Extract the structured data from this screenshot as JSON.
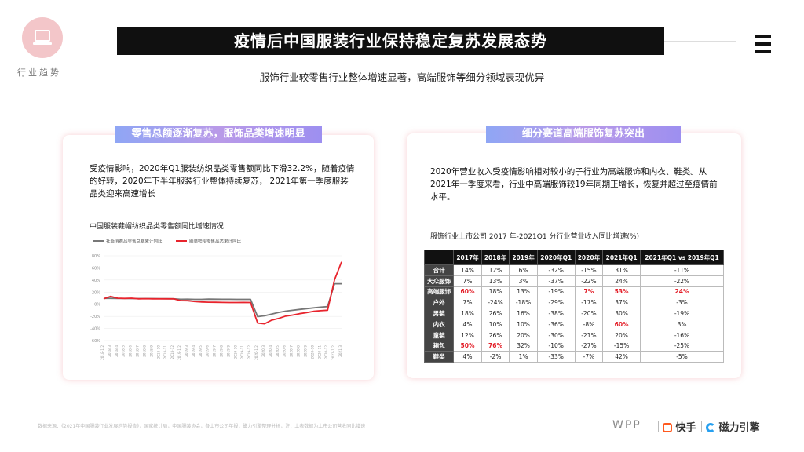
{
  "header": {
    "section_label": "行业趋势",
    "title": "疫情后中国服装行业保持稳定复苏发展态势",
    "subtitle": "服饰行业较零售行业整体增速显著，高端服饰等细分领域表现优异"
  },
  "left_card": {
    "heading": "零售总额逐渐复苏，服饰品类增速明显",
    "paragraph": "受疫情影响，2020年Q1服装纺织品类零售额同比下滑32.2%，随着疫情的好转，2020年下半年服装行业整体持续复苏， 2021年第一季度服装品类迎来高速增长",
    "chart_title": "中国服装鞋帽纺织品类零售额同比增速情况"
  },
  "right_card": {
    "heading": "细分赛道高端服饰复苏突出",
    "paragraph": "2020年营业收入受疫情影响相对较小的子行业为高端服饰和内衣、鞋类。从2021年一季度来看，行业中高端服饰较19年同期正增长，恢复并超过至疫情前水平。",
    "table_title": "服饰行业上市公司 2017 年-2021Q1 分行业营业收入同比增速(%)",
    "columns": [
      "",
      "2017年",
      "2018年",
      "2019年",
      "2020年Q1",
      "2020年",
      "2021年Q1",
      "2021年Q1 vs 2019年Q1"
    ],
    "rows": [
      {
        "name": "合计",
        "cells": [
          "14%",
          "12%",
          "6%",
          "-32%",
          "-15%",
          "31%",
          "-11%"
        ]
      },
      {
        "name": "大众服饰",
        "cells": [
          "7%",
          "13%",
          "3%",
          "-37%",
          "-22%",
          "24%",
          "-22%"
        ]
      },
      {
        "name": "高端服饰",
        "cells": [
          "60%",
          "18%",
          "13%",
          "-19%",
          "7%",
          "53%",
          "24%"
        ]
      },
      {
        "name": "户外",
        "cells": [
          "7%",
          "-24%",
          "-18%",
          "-29%",
          "-17%",
          "37%",
          "-3%"
        ]
      },
      {
        "name": "男装",
        "cells": [
          "18%",
          "26%",
          "16%",
          "-38%",
          "-20%",
          "30%",
          "-19%"
        ]
      },
      {
        "name": "内衣",
        "cells": [
          "4%",
          "10%",
          "10%",
          "-36%",
          "-8%",
          "60%",
          "3%"
        ]
      },
      {
        "name": "童装",
        "cells": [
          "12%",
          "26%",
          "20%",
          "-30%",
          "-21%",
          "20%",
          "-16%"
        ]
      },
      {
        "name": "箱包",
        "cells": [
          "50%",
          "76%",
          "32%",
          "-10%",
          "-27%",
          "-15%",
          "-25%"
        ]
      },
      {
        "name": "鞋类",
        "cells": [
          "4%",
          "-2%",
          "1%",
          "-33%",
          "-7%",
          "42%",
          "-5%"
        ]
      }
    ],
    "highlights": [
      [
        2,
        0
      ],
      [
        2,
        4
      ],
      [
        2,
        5
      ],
      [
        2,
        6
      ],
      [
        5,
        5
      ],
      [
        7,
        0
      ],
      [
        7,
        1
      ]
    ]
  },
  "chart_data": {
    "type": "line",
    "title": "中国服装鞋帽纺织品类零售额同比增速情况",
    "ylim": [
      -60,
      80
    ],
    "yticks": [
      "80%",
      "60%",
      "40%",
      "20%",
      "0%",
      "-20%",
      "-40%",
      "-60%"
    ],
    "x": [
      "2018-1/2",
      "2018-3",
      "2018-4",
      "2018-5",
      "2018-6",
      "2018-7",
      "2018-8",
      "2018-9",
      "2018-10",
      "2018-11",
      "2018-12",
      "2019-1/2",
      "2019-3",
      "2019-4",
      "2019-5",
      "2019-6",
      "2019-7",
      "2019-8",
      "2019-9",
      "2019-10",
      "2019-11",
      "2019-12",
      "2020-1/2",
      "2020-3",
      "2020-4",
      "2020-5",
      "2020-6",
      "2020-7",
      "2020-8",
      "2020-9",
      "2020-10",
      "2020-11",
      "2020-12",
      "2021-1/2",
      "2021-3"
    ],
    "series": [
      {
        "name": "社会消费品零售总额累计同比",
        "color": "#777777",
        "values": [
          9.7,
          9.8,
          9.5,
          9.5,
          9.4,
          9.3,
          9.3,
          9.3,
          9.2,
          9.1,
          9.0,
          8.2,
          8.3,
          8.0,
          8.1,
          8.4,
          8.3,
          8.2,
          8.2,
          8.1,
          8.0,
          8.0,
          -20.5,
          -19.0,
          -16.2,
          -13.5,
          -11.4,
          -9.9,
          -8.6,
          -7.2,
          -5.9,
          -4.8,
          -3.9,
          33.8,
          33.9
        ]
      },
      {
        "name": "服装鞋帽零售品类累计同比",
        "color": "#e8242d",
        "values": [
          9.0,
          13.0,
          10.0,
          9.6,
          10.0,
          9.0,
          9.2,
          9.0,
          9.0,
          8.9,
          8.9,
          6.0,
          5.8,
          4.5,
          3.8,
          3.4,
          3.2,
          3.0,
          2.9,
          2.9,
          3.0,
          2.9,
          -30.9,
          -32.2,
          -26.3,
          -23.5,
          -19.6,
          -17.9,
          -15.5,
          -13.8,
          -11.6,
          -10.6,
          -9.8,
          40.6,
          70.0
        ]
      }
    ]
  },
  "footer": {
    "source": "数据来源：《2021年中国服装行业发展趋势报告》；国家统计局；中国服装协会；各上市公司年报；磁力引擎整理分析；注：上表数据为上市公司营收同比增速",
    "brands": [
      "WPP",
      "快手",
      "磁力引擎"
    ]
  }
}
